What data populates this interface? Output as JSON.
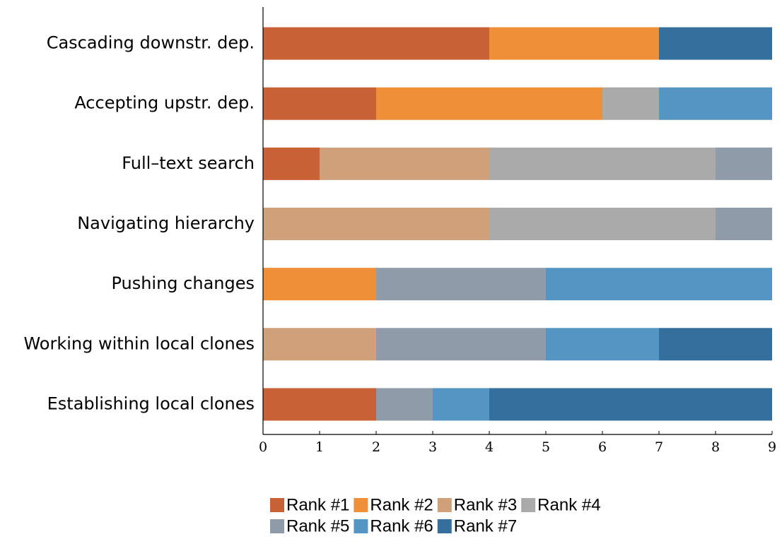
{
  "chart_data": {
    "type": "stacked_barh",
    "categories": [
      "Cascading downstr. dep.",
      "Accepting upstr. dep.",
      "Full–text search",
      "Navigating hierarchy",
      "Pushing changes",
      "Working within local clones",
      "Establishing local clones"
    ],
    "series": [
      {
        "name": "Rank #1",
        "color": "#c86136",
        "values": [
          4,
          2,
          1,
          0,
          0,
          0,
          2
        ]
      },
      {
        "name": "Rank #2",
        "color": "#ef8f38",
        "values": [
          3,
          4,
          0,
          0,
          2,
          0,
          0
        ]
      },
      {
        "name": "Rank #3",
        "color": "#d0a07b",
        "values": [
          0,
          0,
          3,
          4,
          0,
          2,
          0
        ]
      },
      {
        "name": "Rank #4",
        "color": "#aaaaaa",
        "values": [
          0,
          1,
          4,
          4,
          0,
          0,
          0
        ]
      },
      {
        "name": "Rank #5",
        "color": "#8f9ba8",
        "values": [
          0,
          0,
          1,
          1,
          3,
          3,
          1
        ]
      },
      {
        "name": "Rank #6",
        "color": "#5595c4",
        "values": [
          0,
          2,
          0,
          0,
          4,
          2,
          1
        ]
      },
      {
        "name": "Rank #7",
        "color": "#356f9d",
        "values": [
          2,
          0,
          0,
          0,
          0,
          2,
          5
        ]
      }
    ],
    "xlim": [
      0,
      9
    ],
    "xticks": [
      0,
      1,
      2,
      3,
      4,
      5,
      6,
      7,
      8,
      9
    ],
    "legend": "bottom"
  }
}
